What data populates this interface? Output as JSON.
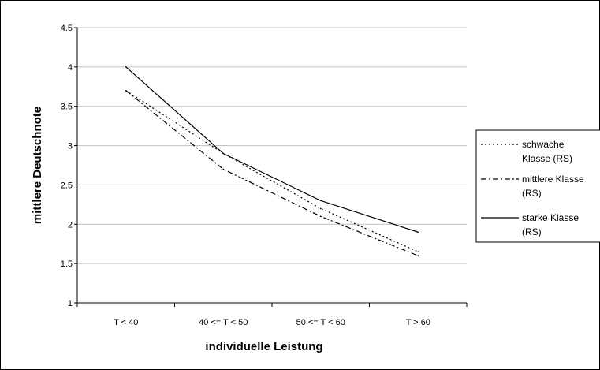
{
  "chart_data": {
    "type": "line",
    "categories": [
      "T < 40",
      "40 <= T < 50",
      "50 <= T < 60",
      "T > 60"
    ],
    "series": [
      {
        "name": "schwache Klasse (RS)",
        "name_lines": [
          "schwache",
          "Klasse (RS)"
        ],
        "values": [
          3.7,
          2.9,
          2.2,
          1.65
        ],
        "style": "dotted"
      },
      {
        "name": "mittlere Klasse (RS)",
        "name_lines": [
          "mittlere Klasse",
          "(RS)"
        ],
        "values": [
          3.7,
          2.7,
          2.1,
          1.6
        ],
        "style": "dashdot"
      },
      {
        "name": "starke Klasse (RS)",
        "name_lines": [
          "starke Klasse",
          "(RS)"
        ],
        "values": [
          4.0,
          2.9,
          2.3,
          1.9
        ],
        "style": "solid"
      }
    ],
    "xlabel": "individuelle Leistung",
    "ylabel": "mittlere Deutschnote",
    "ylim": [
      1,
      4.5
    ],
    "yticks": [
      "1",
      "1.5",
      "2",
      "2.5",
      "3",
      "3.5",
      "4",
      "4.5"
    ],
    "grid": true,
    "legend_position": "right",
    "colors": {
      "line": "#000000",
      "grid": "#c0c0c0",
      "axis": "#000000"
    }
  }
}
